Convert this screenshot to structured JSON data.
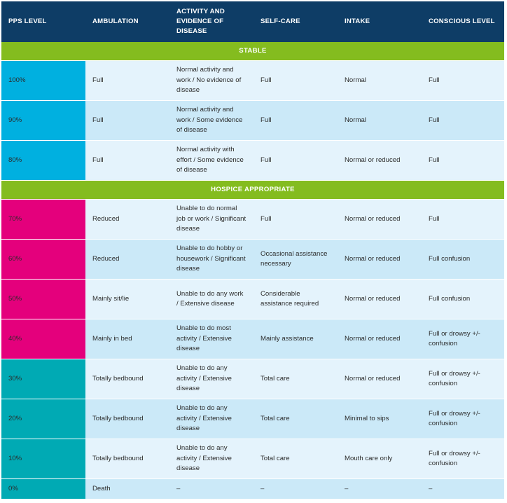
{
  "headers": [
    "PPS LEVEL",
    "AMBULATION",
    "ACTIVITY AND EVIDENCE OF DISEASE",
    "SELF-CARE",
    "INTAKE",
    "CONSCIOUS LEVEL"
  ],
  "sections": {
    "stable": "STABLE",
    "hospice": "HOSPICE APPROPRIATE"
  },
  "rows": [
    {
      "level": "100%",
      "ambulation": "Full",
      "activity": "Normal activity and work / No evidence of disease",
      "selfcare": "Full",
      "intake": "Normal",
      "conscious": "Full"
    },
    {
      "level": "90%",
      "ambulation": "Full",
      "activity": "Normal activity and work / Some evidence of disease",
      "selfcare": "Full",
      "intake": "Normal",
      "conscious": "Full"
    },
    {
      "level": "80%",
      "ambulation": "Full",
      "activity": "Normal activity with effort / Some evidence of disease",
      "selfcare": "Full",
      "intake": "Normal or reduced",
      "conscious": "Full"
    },
    {
      "level": "70%",
      "ambulation": "Reduced",
      "activity": "Unable to do normal job or work / Significant disease",
      "selfcare": "Full",
      "intake": "Normal or reduced",
      "conscious": "Full"
    },
    {
      "level": "60%",
      "ambulation": "Reduced",
      "activity": "Unable to do hobby or housework / Significant disease",
      "selfcare": "Occasional assistance necessary",
      "intake": "Normal or reduced",
      "conscious": "Full confusion"
    },
    {
      "level": "50%",
      "ambulation": "Mainly sit/lie",
      "activity": "Unable to do any work / Extensive disease",
      "selfcare": "Considerable assistance required",
      "intake": "Normal or reduced",
      "conscious": "Full confusion"
    },
    {
      "level": "40%",
      "ambulation": "Mainly in bed",
      "activity": "Unable to do most activity / Extensive disease",
      "selfcare": "Mainly assistance",
      "intake": "Normal or reduced",
      "conscious": "Full or drowsy +/- confusion"
    },
    {
      "level": "30%",
      "ambulation": "Totally bedbound",
      "activity": "Unable to do any activity / Extensive disease",
      "selfcare": "Total care",
      "intake": "Normal or reduced",
      "conscious": "Full or drowsy +/- confusion"
    },
    {
      "level": "20%",
      "ambulation": "Totally bedbound",
      "activity": "Unable to do any activity / Extensive disease",
      "selfcare": "Total care",
      "intake": "Minimal to sips",
      "conscious": "Full or drowsy +/- confusion"
    },
    {
      "level": "10%",
      "ambulation": "Totally bedbound",
      "activity": "Unable to do any activity / Extensive disease",
      "selfcare": "Total care",
      "intake": "Mouth care only",
      "conscious": "Full or drowsy +/- confusion"
    },
    {
      "level": "0%",
      "ambulation": "Death",
      "activity": "–",
      "selfcare": "–",
      "intake": "–",
      "conscious": "–"
    }
  ],
  "colors": {
    "header": "#0e3d66",
    "section": "#84bc1f",
    "stable_level": "#00b0e0",
    "hospice_level": "#e4007c",
    "late_level": "#00aab4",
    "row_light": "#e4f3fc",
    "row_dark": "#cbe9f8"
  }
}
